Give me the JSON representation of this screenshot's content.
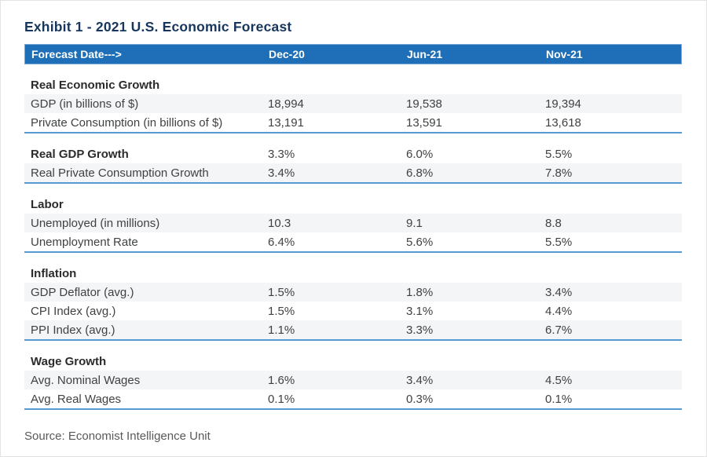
{
  "page": {
    "title": "Exhibit 1 - 2021 U.S. Economic Forecast",
    "source": "Source: Economist Intelligence Unit"
  },
  "colors": {
    "header_bg": "#1e6fb7",
    "header_text": "#ffffff",
    "title_text": "#17365d",
    "row_stripe_bg": "#f4f5f6",
    "section_divider": "#559bd4",
    "body_text": "#3f4142",
    "source_text": "#595959"
  },
  "table": {
    "header": {
      "label": "Forecast Date--->",
      "columns": [
        "Dec-20",
        "Jun-21",
        "Nov-21"
      ]
    },
    "sections": [
      {
        "title": "Real Economic Growth",
        "rows": [
          {
            "label": "GDP (in billions of $)",
            "values": [
              "18,994",
              "19,538",
              "19,394"
            ]
          },
          {
            "label": "Private Consumption (in billions of $)",
            "values": [
              "13,191",
              "13,591",
              "13,618"
            ]
          }
        ]
      },
      {
        "title": "Real GDP Growth",
        "title_values": [
          "3.3%",
          "6.0%",
          "5.5%"
        ],
        "rows": [
          {
            "label": "Real Private Consumption Growth",
            "values": [
              "3.4%",
              "6.8%",
              "7.8%"
            ]
          }
        ]
      },
      {
        "title": "Labor",
        "rows": [
          {
            "label": "Unemployed (in millions)",
            "values": [
              "10.3",
              "9.1",
              "8.8"
            ]
          },
          {
            "label": "Unemployment Rate",
            "values": [
              "6.4%",
              "5.6%",
              "5.5%"
            ]
          }
        ]
      },
      {
        "title": "Inflation",
        "rows": [
          {
            "label": "GDP Deflator (avg.)",
            "values": [
              "1.5%",
              "1.8%",
              "3.4%"
            ]
          },
          {
            "label": "CPI Index (avg.)",
            "values": [
              "1.5%",
              "3.1%",
              "4.4%"
            ]
          },
          {
            "label": "PPI Index (avg.)",
            "values": [
              "1.1%",
              "3.3%",
              "6.7%"
            ]
          }
        ]
      },
      {
        "title": "Wage Growth",
        "rows": [
          {
            "label": "Avg. Nominal Wages",
            "values": [
              "1.6%",
              "3.4%",
              "4.5%"
            ]
          },
          {
            "label": "Avg. Real Wages",
            "values": [
              "0.1%",
              "0.3%",
              "0.1%"
            ]
          }
        ]
      }
    ]
  }
}
